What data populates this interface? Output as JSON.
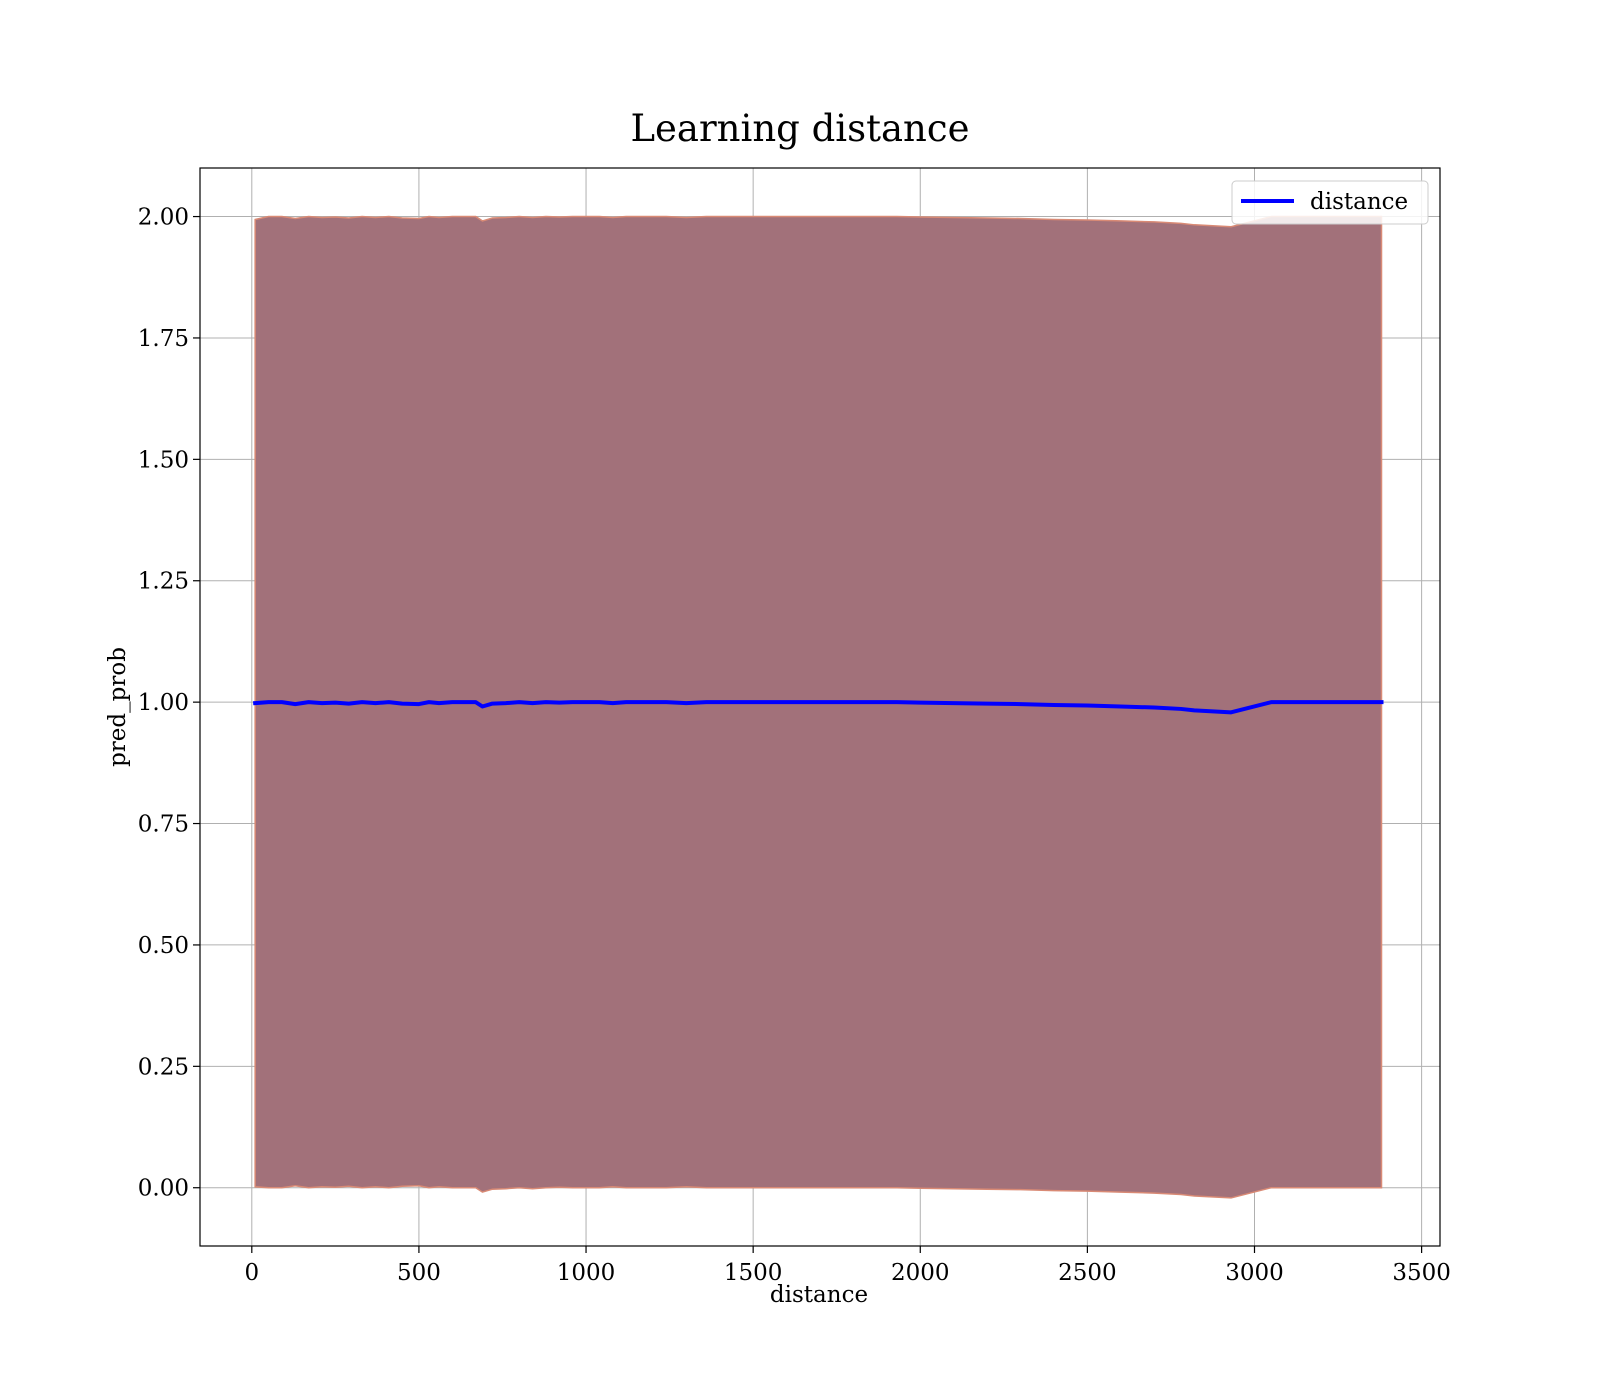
{
  "chart_data": {
    "type": "line",
    "title": "Learning distance",
    "xlabel": "distance",
    "ylabel": "pred_prob",
    "xlim": [
      -155,
      3555
    ],
    "ylim": [
      -0.12,
      2.1
    ],
    "x_ticks": [
      0,
      500,
      1000,
      1500,
      2000,
      2500,
      3000,
      3500
    ],
    "x_tick_labels": [
      "0",
      "500",
      "1000",
      "1500",
      "2000",
      "2500",
      "3000",
      "3500"
    ],
    "y_ticks": [
      0.0,
      0.25,
      0.5,
      0.75,
      1.0,
      1.25,
      1.5,
      1.75,
      2.0
    ],
    "y_tick_labels": [
      "0.00",
      "0.25",
      "0.50",
      "0.75",
      "1.00",
      "1.25",
      "1.50",
      "1.75",
      "2.00"
    ],
    "grid": true,
    "legend": {
      "position": "upper right",
      "entries": [
        "distance"
      ]
    },
    "colors": {
      "line": "#0000ff",
      "band_fill": "#a2717a",
      "band_edge": "#d98a75",
      "grid": "#b0b0b0",
      "axes": "#000000"
    },
    "series": [
      {
        "name": "distance",
        "x": [
          10,
          50,
          90,
          130,
          170,
          210,
          250,
          290,
          330,
          370,
          410,
          450,
          500,
          530,
          560,
          600,
          650,
          670,
          690,
          720,
          760,
          800,
          840,
          880,
          920,
          960,
          1000,
          1040,
          1080,
          1120,
          1180,
          1240,
          1300,
          1360,
          1420,
          1500,
          1600,
          1700,
          1800,
          1930,
          2000,
          2100,
          2200,
          2300,
          2400,
          2500,
          2600,
          2700,
          2780,
          2820,
          2930,
          3050,
          3150,
          3250,
          3380
        ],
        "y": [
          0.998,
          1.0,
          1.0,
          0.996,
          1.0,
          0.998,
          0.999,
          0.997,
          1.0,
          0.998,
          1.0,
          0.997,
          0.996,
          1.0,
          0.998,
          1.0,
          1.0,
          1.0,
          0.991,
          0.997,
          0.998,
          1.0,
          0.998,
          1.0,
          0.999,
          1.0,
          1.0,
          1.0,
          0.998,
          1.0,
          1.0,
          1.0,
          0.998,
          1.0,
          1.0,
          1.0,
          1.0,
          1.0,
          1.0,
          1.0,
          0.999,
          0.998,
          0.997,
          0.996,
          0.994,
          0.993,
          0.991,
          0.989,
          0.986,
          0.983,
          0.979,
          1.0,
          1.0,
          1.0,
          1.0
        ],
        "band_lower": [
          0.002,
          0.0,
          0.0,
          0.004,
          0.0,
          0.002,
          0.001,
          0.003,
          0.0,
          0.002,
          0.0,
          0.003,
          0.004,
          0.0,
          0.002,
          0.0,
          0.0,
          0.0,
          -0.009,
          -0.003,
          -0.002,
          0.0,
          -0.002,
          0.0,
          0.001,
          0.0,
          0.0,
          0.0,
          0.002,
          0.0,
          0.0,
          0.0,
          0.002,
          0.0,
          0.0,
          0.0,
          0.0,
          0.0,
          0.0,
          0.0,
          -0.001,
          -0.002,
          -0.003,
          -0.004,
          -0.006,
          -0.007,
          -0.009,
          -0.011,
          -0.014,
          -0.017,
          -0.021,
          0.0,
          0.0,
          0.0,
          0.0
        ],
        "band_upper": [
          1.994,
          2.0,
          2.0,
          1.996,
          2.0,
          1.998,
          1.999,
          1.997,
          2.0,
          1.998,
          2.0,
          1.997,
          1.996,
          2.0,
          1.998,
          2.0,
          2.0,
          2.0,
          1.991,
          1.997,
          1.998,
          2.0,
          1.998,
          2.0,
          1.999,
          2.0,
          2.0,
          2.0,
          1.998,
          2.0,
          2.0,
          2.0,
          1.998,
          2.0,
          2.0,
          2.0,
          2.0,
          2.0,
          2.0,
          2.0,
          1.999,
          1.998,
          1.997,
          1.996,
          1.994,
          1.993,
          1.991,
          1.989,
          1.986,
          1.983,
          1.979,
          2.0,
          2.0,
          2.0,
          2.0
        ]
      }
    ]
  }
}
